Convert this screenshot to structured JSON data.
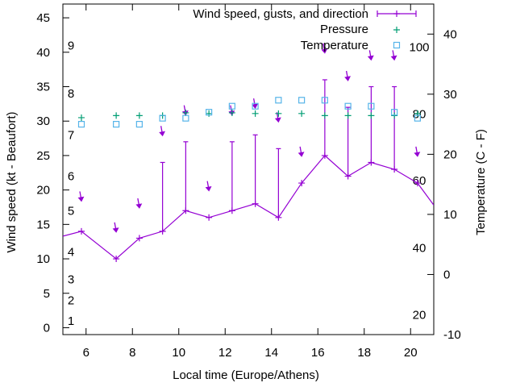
{
  "chart_data": {
    "type": "line",
    "xlabel": "Local time (Europe/Athens)",
    "ylabel_left": "Wind speed (kt - Beaufort)",
    "ylabel_right": "Temperature (C - F)",
    "xlim": [
      5,
      21
    ],
    "ylim_left": [
      -1,
      47
    ],
    "ylim_right": [
      -10,
      45
    ],
    "x_ticks": [
      6,
      8,
      10,
      12,
      14,
      16,
      18,
      20
    ],
    "y_left_ticks": [
      0,
      5,
      10,
      15,
      20,
      25,
      30,
      35,
      40,
      45
    ],
    "y_right_ticks": [
      -10,
      0,
      10,
      20,
      30,
      40
    ],
    "beaufort_labels": [
      {
        "label": "1",
        "kt": 1
      },
      {
        "label": "2",
        "kt": 4
      },
      {
        "label": "3",
        "kt": 7
      },
      {
        "label": "4",
        "kt": 11
      },
      {
        "label": "5",
        "kt": 17
      },
      {
        "label": "6",
        "kt": 22
      },
      {
        "label": "7",
        "kt": 28
      },
      {
        "label": "8",
        "kt": 34
      },
      {
        "label": "9",
        "kt": 41
      }
    ],
    "fahrenheit_labels": [
      {
        "label": "20",
        "c": -6.7
      },
      {
        "label": "40",
        "c": 4.4
      },
      {
        "label": "60",
        "c": 15.6
      },
      {
        "label": "80",
        "c": 26.7
      },
      {
        "label": "100",
        "c": 37.8
      }
    ],
    "legend": {
      "position": "top-right",
      "wind": "Wind speed, gusts, and direction",
      "pressure": "Pressure",
      "temperature": "Temperature"
    },
    "colors": {
      "wind": "#9400d3",
      "pressure": "#009e73",
      "temperature": "#56b4e9"
    },
    "wind": {
      "x": [
        5,
        5.8,
        7.3,
        8.3,
        9.3,
        10.3,
        11.3,
        12.3,
        13.3,
        14.3,
        15.3,
        16.3,
        17.3,
        18.3,
        19.3,
        20.3,
        21
      ],
      "speed": [
        13.3,
        14,
        10,
        13,
        14,
        17,
        16,
        17,
        18,
        16,
        21,
        25,
        22,
        24,
        23,
        21,
        17.8
      ]
    },
    "gusts": [
      {
        "x": 9.3,
        "from": 14,
        "to": 24
      },
      {
        "x": 10.3,
        "from": 17,
        "to": 27
      },
      {
        "x": 12.3,
        "from": 17,
        "to": 27
      },
      {
        "x": 13.3,
        "from": 18,
        "to": 28
      },
      {
        "x": 14.3,
        "from": 16,
        "to": 26
      },
      {
        "x": 16.3,
        "from": 25,
        "to": 36
      },
      {
        "x": 17.3,
        "from": 22,
        "to": 32
      },
      {
        "x": 18.3,
        "from": 24,
        "to": 35
      },
      {
        "x": 19.3,
        "from": 23,
        "to": 35
      }
    ],
    "direction_arrows": [
      {
        "x": 5.8,
        "kt": 18.5
      },
      {
        "x": 7.3,
        "kt": 14.0
      },
      {
        "x": 8.3,
        "kt": 17.5
      },
      {
        "x": 9.3,
        "kt": 28.0
      },
      {
        "x": 10.3,
        "kt": 31.0
      },
      {
        "x": 11.3,
        "kt": 20.0
      },
      {
        "x": 12.3,
        "kt": 31.0
      },
      {
        "x": 13.3,
        "kt": 32.0
      },
      {
        "x": 14.3,
        "kt": 30.0
      },
      {
        "x": 15.3,
        "kt": 25.0
      },
      {
        "x": 16.3,
        "kt": 40.0
      },
      {
        "x": 17.3,
        "kt": 36.0
      },
      {
        "x": 18.3,
        "kt": 39.0
      },
      {
        "x": 19.3,
        "kt": 39.0
      },
      {
        "x": 20.3,
        "kt": 25.0
      }
    ],
    "pressure": {
      "x": [
        5.8,
        7.3,
        8.3,
        9.3,
        10.3,
        11.3,
        12.3,
        13.3,
        14.3,
        15.3,
        16.3,
        17.3,
        18.3,
        19.3,
        20.3
      ],
      "kt": [
        30.5,
        30.8,
        30.8,
        30.8,
        31.2,
        31.1,
        31.2,
        31.1,
        31.1,
        31.1,
        30.8,
        30.8,
        30.8,
        30.8,
        31.1
      ]
    },
    "temperature": {
      "x": [
        5.8,
        7.3,
        8.3,
        9.3,
        10.3,
        11.3,
        12.3,
        13.3,
        14.3,
        15.3,
        16.3,
        17.3,
        18.3,
        19.3,
        20.3
      ],
      "c": [
        25,
        25,
        25,
        26,
        26,
        27,
        28,
        28,
        29,
        29,
        29,
        28,
        28,
        27,
        26
      ]
    }
  }
}
